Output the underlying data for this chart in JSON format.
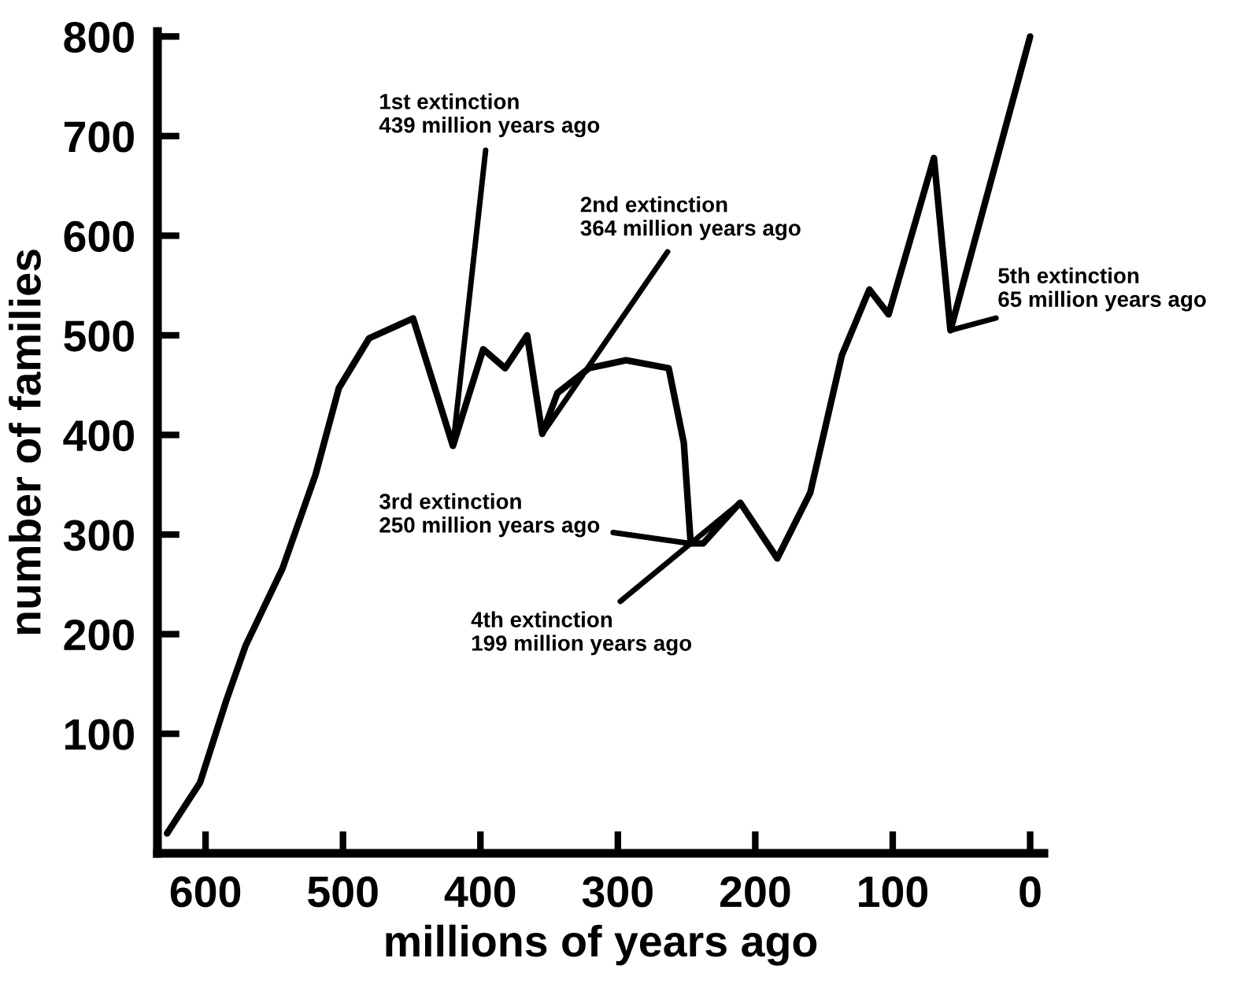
{
  "chart_data": {
    "type": "line",
    "xlabel": "millions of years ago",
    "ylabel": "number of families",
    "x": [
      628,
      604,
      585,
      571,
      544,
      520,
      503,
      481,
      449,
      420,
      398,
      382,
      366,
      355,
      344,
      321,
      294,
      263,
      252,
      247,
      238,
      211,
      184,
      160,
      137,
      117,
      103,
      70,
      58,
      0
    ],
    "series": [
      {
        "color": "#000000",
        "values": [
          0,
          51,
          133,
          188,
          266,
          360,
          447,
          497,
          517,
          389,
          486,
          467,
          500,
          401,
          442,
          467,
          475,
          467,
          392,
          291,
          291,
          332,
          276,
          342,
          480,
          546,
          521,
          678,
          505,
          800
        ]
      }
    ],
    "xlim": [
      635,
      -10
    ],
    "ylim": [
      -20,
      805
    ],
    "xticks": [
      600,
      500,
      400,
      300,
      200,
      100,
      0
    ],
    "yticks": [
      100,
      200,
      300,
      400,
      500,
      600,
      700,
      800
    ],
    "grid": false,
    "marker": "none",
    "line_style": "solid",
    "annotations": [
      {
        "text": "1st extinction\n439 million years ago",
        "x": 420,
        "y": 389
      },
      {
        "text": "2nd extinction\n364 million years ago",
        "x": 355,
        "y": 401
      },
      {
        "text": "3rd extinction\n250 million years ago",
        "x": 247,
        "y": 291
      },
      {
        "text": "4th extinction\n199 million years ago",
        "x": 211,
        "y": 332
      },
      {
        "text": "5th extinction\n65 million years ago",
        "x": 58,
        "y": 505
      }
    ]
  }
}
